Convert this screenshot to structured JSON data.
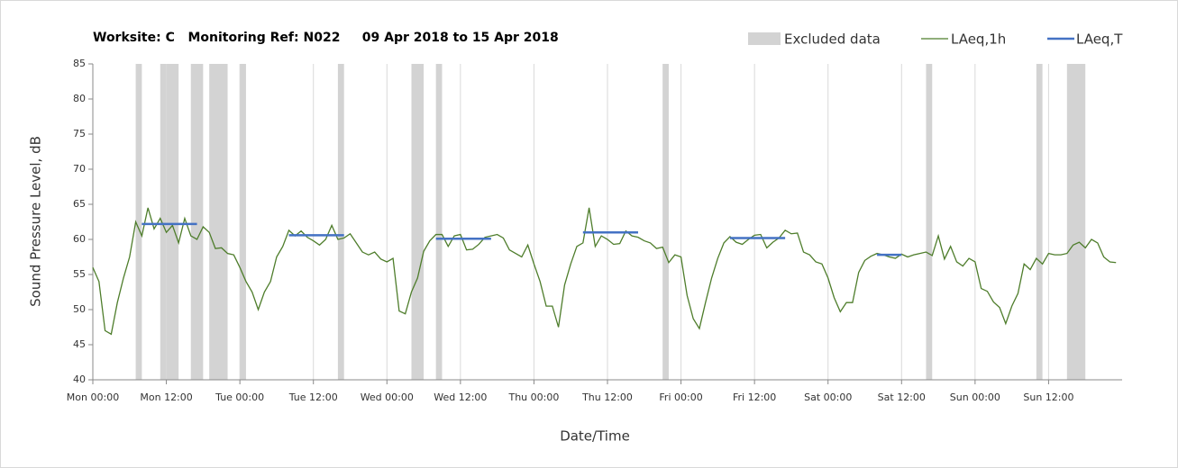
{
  "chart_data": {
    "type": "line",
    "title": "Worksite: C   Monitoring Ref: N022     09 Apr 2018 to 15 Apr 2018",
    "xlabel": "Date/Time",
    "ylabel": "Sound Pressure Level, dB",
    "xlim": [
      0,
      168
    ],
    "ylim": [
      40,
      85
    ],
    "yticks": [
      40,
      45,
      50,
      55,
      60,
      65,
      70,
      75,
      80,
      85
    ],
    "xticks": [
      {
        "value": 0,
        "label": "Mon 00:00"
      },
      {
        "value": 12,
        "label": "Mon 12:00"
      },
      {
        "value": 24,
        "label": "Tue 00:00"
      },
      {
        "value": 36,
        "label": "Tue 12:00"
      },
      {
        "value": 48,
        "label": "Wed 00:00"
      },
      {
        "value": 60,
        "label": "Wed 12:00"
      },
      {
        "value": 72,
        "label": "Thu 00:00"
      },
      {
        "value": 84,
        "label": "Thu 12:00"
      },
      {
        "value": 96,
        "label": "Fri 00:00"
      },
      {
        "value": 108,
        "label": "Fri 12:00"
      },
      {
        "value": 120,
        "label": "Sat 00:00"
      },
      {
        "value": 132,
        "label": "Sat 12:00"
      },
      {
        "value": 144,
        "label": "Sun 00:00"
      },
      {
        "value": 156,
        "label": "Sun 12:00"
      }
    ],
    "grid": true,
    "excluded": {
      "name": "Excluded data",
      "color": "#d3d3d3",
      "ranges": [
        [
          7,
          8
        ],
        [
          11,
          14
        ],
        [
          16,
          18
        ],
        [
          19,
          22
        ],
        [
          24,
          25
        ],
        [
          40,
          41
        ],
        [
          52,
          54
        ],
        [
          56,
          57
        ],
        [
          93,
          94
        ],
        [
          136,
          137
        ],
        [
          154,
          155
        ],
        [
          159,
          162
        ]
      ]
    },
    "x": [
      0,
      1,
      2,
      3,
      4,
      5,
      6,
      7,
      8,
      9,
      10,
      11,
      12,
      13,
      14,
      15,
      16,
      17,
      18,
      19,
      20,
      21,
      22,
      23,
      24,
      25,
      26,
      27,
      28,
      29,
      30,
      31,
      32,
      33,
      34,
      35,
      36,
      37,
      38,
      39,
      40,
      41,
      42,
      43,
      44,
      45,
      46,
      47,
      48,
      49,
      50,
      51,
      52,
      53,
      54,
      55,
      56,
      57,
      58,
      59,
      60,
      61,
      62,
      63,
      64,
      65,
      66,
      67,
      68,
      69,
      70,
      71,
      72,
      73,
      74,
      75,
      76,
      77,
      78,
      79,
      80,
      81,
      82,
      83,
      84,
      85,
      86,
      87,
      88,
      89,
      90,
      91,
      92,
      93,
      94,
      95,
      96,
      97,
      98,
      99,
      100,
      101,
      102,
      103,
      104,
      105,
      106,
      107,
      108,
      109,
      110,
      111,
      112,
      113,
      114,
      115,
      116,
      117,
      118,
      119,
      120,
      121,
      122,
      123,
      124,
      125,
      126,
      127,
      128,
      129,
      130,
      131,
      132,
      133,
      134,
      135,
      136,
      137,
      138,
      139,
      140,
      141,
      142,
      143,
      144,
      145,
      146,
      147,
      148,
      149,
      150,
      151,
      152,
      153,
      154,
      155,
      156,
      157,
      158,
      159,
      160,
      161,
      162,
      163,
      164,
      165,
      166,
      167
    ],
    "series": [
      {
        "name": "LAeq,1h",
        "color": "#4e7d2b",
        "values": [
          56,
          54,
          47,
          46.5,
          51,
          54.5,
          57.5,
          62.5,
          60.5,
          64.5,
          61.5,
          63,
          61,
          62,
          59.5,
          63,
          60.5,
          60,
          61.8,
          61,
          58.7,
          58.8,
          58,
          57.8,
          56,
          54,
          52.5,
          50,
          52.5,
          54,
          57.5,
          59,
          61.3,
          60.5,
          61.2,
          60.3,
          59.8,
          59.2,
          60,
          62,
          60,
          60.2,
          60.8,
          59.5,
          58.2,
          57.8,
          58.2,
          57.2,
          56.8,
          57.3,
          49.8,
          49.4,
          52.5,
          54.5,
          58.3,
          59.8,
          60.7,
          60.7,
          59,
          60.5,
          60.7,
          58.5,
          58.6,
          59.3,
          60.3,
          60.5,
          60.7,
          60.2,
          58.5,
          58,
          57.5,
          59.2,
          56.5,
          54,
          50.5,
          50.5,
          47.5,
          53.5,
          56.5,
          59,
          59.5,
          64.5,
          59,
          60.5,
          60,
          59.3,
          59.4,
          61.2,
          60.5,
          60.3,
          59.8,
          59.5,
          58.7,
          58.9,
          56.7,
          57.8,
          57.5,
          52,
          48.7,
          47.3,
          51,
          54.5,
          57.3,
          59.5,
          60.4,
          59.6,
          59.3,
          60,
          60.6,
          60.7,
          58.8,
          59.6,
          60.2,
          61.3,
          60.8,
          60.9,
          58.2,
          57.8,
          56.8,
          56.5,
          54.5,
          51.7,
          49.7,
          51,
          51,
          55.3,
          57,
          57.6,
          58,
          57.8,
          57.5,
          57.3,
          57.9,
          57.5,
          57.8,
          58,
          58.2,
          57.7,
          60.5,
          57.2,
          59,
          56.8,
          56.2,
          57.3,
          56.8,
          53,
          52.6,
          51.1,
          50.3,
          48,
          50.5,
          52.3,
          56.5,
          55.7,
          57.3,
          56.5,
          58,
          57.8,
          57.8,
          58,
          59.2,
          59.6,
          58.8,
          60,
          59.5,
          57.5,
          56.8,
          56.7
        ]
      }
    ],
    "averages": {
      "name": "LAeq,T",
      "color": "#4472c4",
      "segments": [
        {
          "start": 8,
          "end": 17,
          "value": 62.2
        },
        {
          "start": 32,
          "end": 41,
          "value": 60.6
        },
        {
          "start": 56,
          "end": 65,
          "value": 60.1
        },
        {
          "start": 80,
          "end": 89,
          "value": 61
        },
        {
          "start": 104,
          "end": 113,
          "value": 60.2
        },
        {
          "start": 128,
          "end": 132,
          "value": 57.8
        }
      ]
    }
  }
}
